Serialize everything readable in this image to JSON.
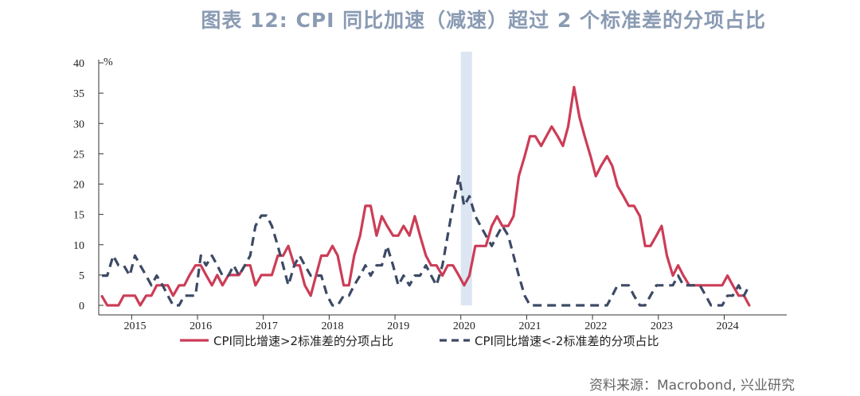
{
  "chart_data": {
    "type": "line",
    "title": "图表 12: CPI  同比加速（减速）超过  2  个标准差的分项占比",
    "unit": "%",
    "source": "资料来源：Macrobond, 兴业研究",
    "ylim": [
      0,
      40
    ],
    "yticks": [
      0,
      5,
      10,
      15,
      20,
      25,
      30,
      35,
      40
    ],
    "xlim": [
      2014.5,
      2024.95
    ],
    "year_labels": [
      "2015",
      "2016",
      "2017",
      "2018",
      "2019",
      "2020",
      "2021",
      "2022",
      "2023",
      "2024"
    ],
    "shaded_period": [
      2020.0,
      2020.17
    ],
    "colors": {
      "accel": "#cc3d57",
      "decel": "#3d4a66",
      "shade": "#dce6f2",
      "axis": "#333333"
    },
    "series": [
      {
        "name": "CPI同比增速>2标准差的分项占比",
        "style": "solid",
        "points": [
          [
            2014.55,
            1.5
          ],
          [
            2014.63,
            0
          ],
          [
            2014.72,
            0
          ],
          [
            2014.8,
            0
          ],
          [
            2014.88,
            1.6
          ],
          [
            2014.97,
            1.6
          ],
          [
            2015.05,
            1.6
          ],
          [
            2015.13,
            0
          ],
          [
            2015.22,
            1.6
          ],
          [
            2015.3,
            1.6
          ],
          [
            2015.38,
            3.3
          ],
          [
            2015.47,
            3.3
          ],
          [
            2015.55,
            3.3
          ],
          [
            2015.63,
            1.6
          ],
          [
            2015.72,
            3.3
          ],
          [
            2015.8,
            3.3
          ],
          [
            2015.88,
            5
          ],
          [
            2015.97,
            6.6
          ],
          [
            2016.05,
            6.6
          ],
          [
            2016.13,
            5
          ],
          [
            2016.22,
            3.3
          ],
          [
            2016.3,
            5
          ],
          [
            2016.38,
            3.3
          ],
          [
            2016.47,
            5
          ],
          [
            2016.55,
            5
          ],
          [
            2016.63,
            5
          ],
          [
            2016.72,
            6.6
          ],
          [
            2016.8,
            6.6
          ],
          [
            2016.88,
            3.3
          ],
          [
            2016.97,
            5
          ],
          [
            2017.05,
            5
          ],
          [
            2017.13,
            5
          ],
          [
            2017.22,
            8.2
          ],
          [
            2017.3,
            8.2
          ],
          [
            2017.38,
            9.8
          ],
          [
            2017.47,
            6.6
          ],
          [
            2017.55,
            6.6
          ],
          [
            2017.63,
            3.3
          ],
          [
            2017.72,
            1.6
          ],
          [
            2017.8,
            4.9
          ],
          [
            2017.88,
            8.2
          ],
          [
            2017.97,
            8.2
          ],
          [
            2018.05,
            9.8
          ],
          [
            2018.13,
            8.2
          ],
          [
            2018.22,
            3.3
          ],
          [
            2018.3,
            3.3
          ],
          [
            2018.38,
            8.2
          ],
          [
            2018.47,
            11.5
          ],
          [
            2018.55,
            16.4
          ],
          [
            2018.63,
            16.4
          ],
          [
            2018.72,
            11.5
          ],
          [
            2018.8,
            14.7
          ],
          [
            2018.88,
            13.1
          ],
          [
            2018.97,
            11.5
          ],
          [
            2019.05,
            11.5
          ],
          [
            2019.13,
            13.1
          ],
          [
            2019.22,
            11.5
          ],
          [
            2019.3,
            14.7
          ],
          [
            2019.38,
            11.5
          ],
          [
            2019.47,
            8.2
          ],
          [
            2019.55,
            6.6
          ],
          [
            2019.63,
            6.6
          ],
          [
            2019.72,
            4.9
          ],
          [
            2019.8,
            6.6
          ],
          [
            2019.88,
            6.6
          ],
          [
            2019.97,
            4.9
          ],
          [
            2020.05,
            3.3
          ],
          [
            2020.13,
            4.9
          ],
          [
            2020.22,
            9.8
          ],
          [
            2020.3,
            9.8
          ],
          [
            2020.38,
            9.8
          ],
          [
            2020.47,
            13.1
          ],
          [
            2020.55,
            14.7
          ],
          [
            2020.63,
            13.1
          ],
          [
            2020.72,
            13.1
          ],
          [
            2020.8,
            14.7
          ],
          [
            2020.88,
            21.3
          ],
          [
            2020.97,
            24.6
          ],
          [
            2021.05,
            27.9
          ],
          [
            2021.13,
            27.9
          ],
          [
            2021.22,
            26.3
          ],
          [
            2021.3,
            27.9
          ],
          [
            2021.38,
            29.5
          ],
          [
            2021.47,
            27.9
          ],
          [
            2021.55,
            26.3
          ],
          [
            2021.63,
            29.5
          ],
          [
            2021.72,
            36
          ],
          [
            2021.8,
            31.1
          ],
          [
            2021.88,
            27.9
          ],
          [
            2021.97,
            24.6
          ],
          [
            2022.05,
            21.3
          ],
          [
            2022.13,
            23
          ],
          [
            2022.22,
            24.6
          ],
          [
            2022.3,
            23
          ],
          [
            2022.38,
            19.7
          ],
          [
            2022.47,
            18
          ],
          [
            2022.55,
            16.4
          ],
          [
            2022.63,
            16.4
          ],
          [
            2022.72,
            14.7
          ],
          [
            2022.8,
            9.8
          ],
          [
            2022.88,
            9.8
          ],
          [
            2022.97,
            11.5
          ],
          [
            2023.05,
            13.1
          ],
          [
            2023.13,
            8.2
          ],
          [
            2023.22,
            4.9
          ],
          [
            2023.3,
            6.6
          ],
          [
            2023.38,
            4.9
          ],
          [
            2023.47,
            3.3
          ],
          [
            2023.55,
            3.3
          ],
          [
            2023.63,
            3.3
          ],
          [
            2023.72,
            3.3
          ],
          [
            2023.8,
            3.3
          ],
          [
            2023.88,
            3.3
          ],
          [
            2023.97,
            3.3
          ],
          [
            2024.05,
            4.9
          ],
          [
            2024.13,
            3.3
          ],
          [
            2024.22,
            1.6
          ],
          [
            2024.3,
            1.6
          ],
          [
            2024.38,
            0
          ]
        ]
      },
      {
        "name": "CPI同比增速<-2标准差的分项占比",
        "style": "dashed",
        "points": [
          [
            2014.55,
            4.9
          ],
          [
            2014.63,
            4.9
          ],
          [
            2014.72,
            8.2
          ],
          [
            2014.8,
            6.6
          ],
          [
            2014.88,
            6.6
          ],
          [
            2014.97,
            4.9
          ],
          [
            2015.05,
            8.2
          ],
          [
            2015.13,
            6.6
          ],
          [
            2015.22,
            4.9
          ],
          [
            2015.3,
            3.3
          ],
          [
            2015.38,
            4.9
          ],
          [
            2015.47,
            3.3
          ],
          [
            2015.55,
            1.6
          ],
          [
            2015.63,
            0
          ],
          [
            2015.72,
            0
          ],
          [
            2015.8,
            1.6
          ],
          [
            2015.88,
            1.6
          ],
          [
            2015.97,
            1.6
          ],
          [
            2016.05,
            8.2
          ],
          [
            2016.13,
            6.6
          ],
          [
            2016.22,
            8.2
          ],
          [
            2016.3,
            6.6
          ],
          [
            2016.38,
            4.9
          ],
          [
            2016.47,
            4.9
          ],
          [
            2016.55,
            6.6
          ],
          [
            2016.63,
            4.9
          ],
          [
            2016.72,
            6.6
          ],
          [
            2016.8,
            8.2
          ],
          [
            2016.88,
            13.1
          ],
          [
            2016.97,
            14.8
          ],
          [
            2017.05,
            14.8
          ],
          [
            2017.13,
            13.1
          ],
          [
            2017.22,
            9.8
          ],
          [
            2017.3,
            6.6
          ],
          [
            2017.38,
            3.3
          ],
          [
            2017.47,
            6.6
          ],
          [
            2017.55,
            8.2
          ],
          [
            2017.63,
            6.6
          ],
          [
            2017.72,
            4.9
          ],
          [
            2017.8,
            4.9
          ],
          [
            2017.88,
            4.9
          ],
          [
            2017.97,
            1.6
          ],
          [
            2018.05,
            0
          ],
          [
            2018.13,
            0
          ],
          [
            2018.22,
            1.6
          ],
          [
            2018.3,
            1.6
          ],
          [
            2018.38,
            3.3
          ],
          [
            2018.47,
            4.9
          ],
          [
            2018.55,
            6.6
          ],
          [
            2018.63,
            4.9
          ],
          [
            2018.72,
            6.6
          ],
          [
            2018.8,
            6.6
          ],
          [
            2018.88,
            9.8
          ],
          [
            2018.97,
            6.6
          ],
          [
            2019.05,
            3.3
          ],
          [
            2019.13,
            4.9
          ],
          [
            2019.22,
            3.3
          ],
          [
            2019.3,
            4.9
          ],
          [
            2019.38,
            4.9
          ],
          [
            2019.47,
            6.6
          ],
          [
            2019.55,
            4.9
          ],
          [
            2019.63,
            3.3
          ],
          [
            2019.72,
            6.6
          ],
          [
            2019.8,
            11.5
          ],
          [
            2019.88,
            16.4
          ],
          [
            2019.97,
            21.3
          ],
          [
            2020.05,
            16.4
          ],
          [
            2020.13,
            18
          ],
          [
            2020.22,
            14.7
          ],
          [
            2020.3,
            13.1
          ],
          [
            2020.38,
            11.5
          ],
          [
            2020.47,
            9.8
          ],
          [
            2020.55,
            11.5
          ],
          [
            2020.63,
            13.1
          ],
          [
            2020.72,
            11.5
          ],
          [
            2020.8,
            8.2
          ],
          [
            2020.88,
            4.9
          ],
          [
            2020.97,
            1.6
          ],
          [
            2021.05,
            0
          ],
          [
            2021.3,
            0
          ],
          [
            2021.55,
            0
          ],
          [
            2021.8,
            0
          ],
          [
            2022.05,
            0
          ],
          [
            2022.22,
            0
          ],
          [
            2022.3,
            1.6
          ],
          [
            2022.38,
            3.3
          ],
          [
            2022.47,
            3.3
          ],
          [
            2022.55,
            3.3
          ],
          [
            2022.63,
            1.6
          ],
          [
            2022.72,
            0
          ],
          [
            2022.8,
            0
          ],
          [
            2022.88,
            1.6
          ],
          [
            2022.97,
            3.3
          ],
          [
            2023.05,
            3.3
          ],
          [
            2023.13,
            3.3
          ],
          [
            2023.22,
            3.3
          ],
          [
            2023.3,
            4.9
          ],
          [
            2023.38,
            3.3
          ],
          [
            2023.47,
            3.3
          ],
          [
            2023.55,
            3.3
          ],
          [
            2023.63,
            3.3
          ],
          [
            2023.72,
            1.6
          ],
          [
            2023.8,
            0
          ],
          [
            2023.88,
            0
          ],
          [
            2023.97,
            0
          ],
          [
            2024.05,
            1.6
          ],
          [
            2024.13,
            1.6
          ],
          [
            2024.22,
            3.3
          ],
          [
            2024.3,
            1.6
          ],
          [
            2024.38,
            3.3
          ]
        ]
      }
    ]
  }
}
